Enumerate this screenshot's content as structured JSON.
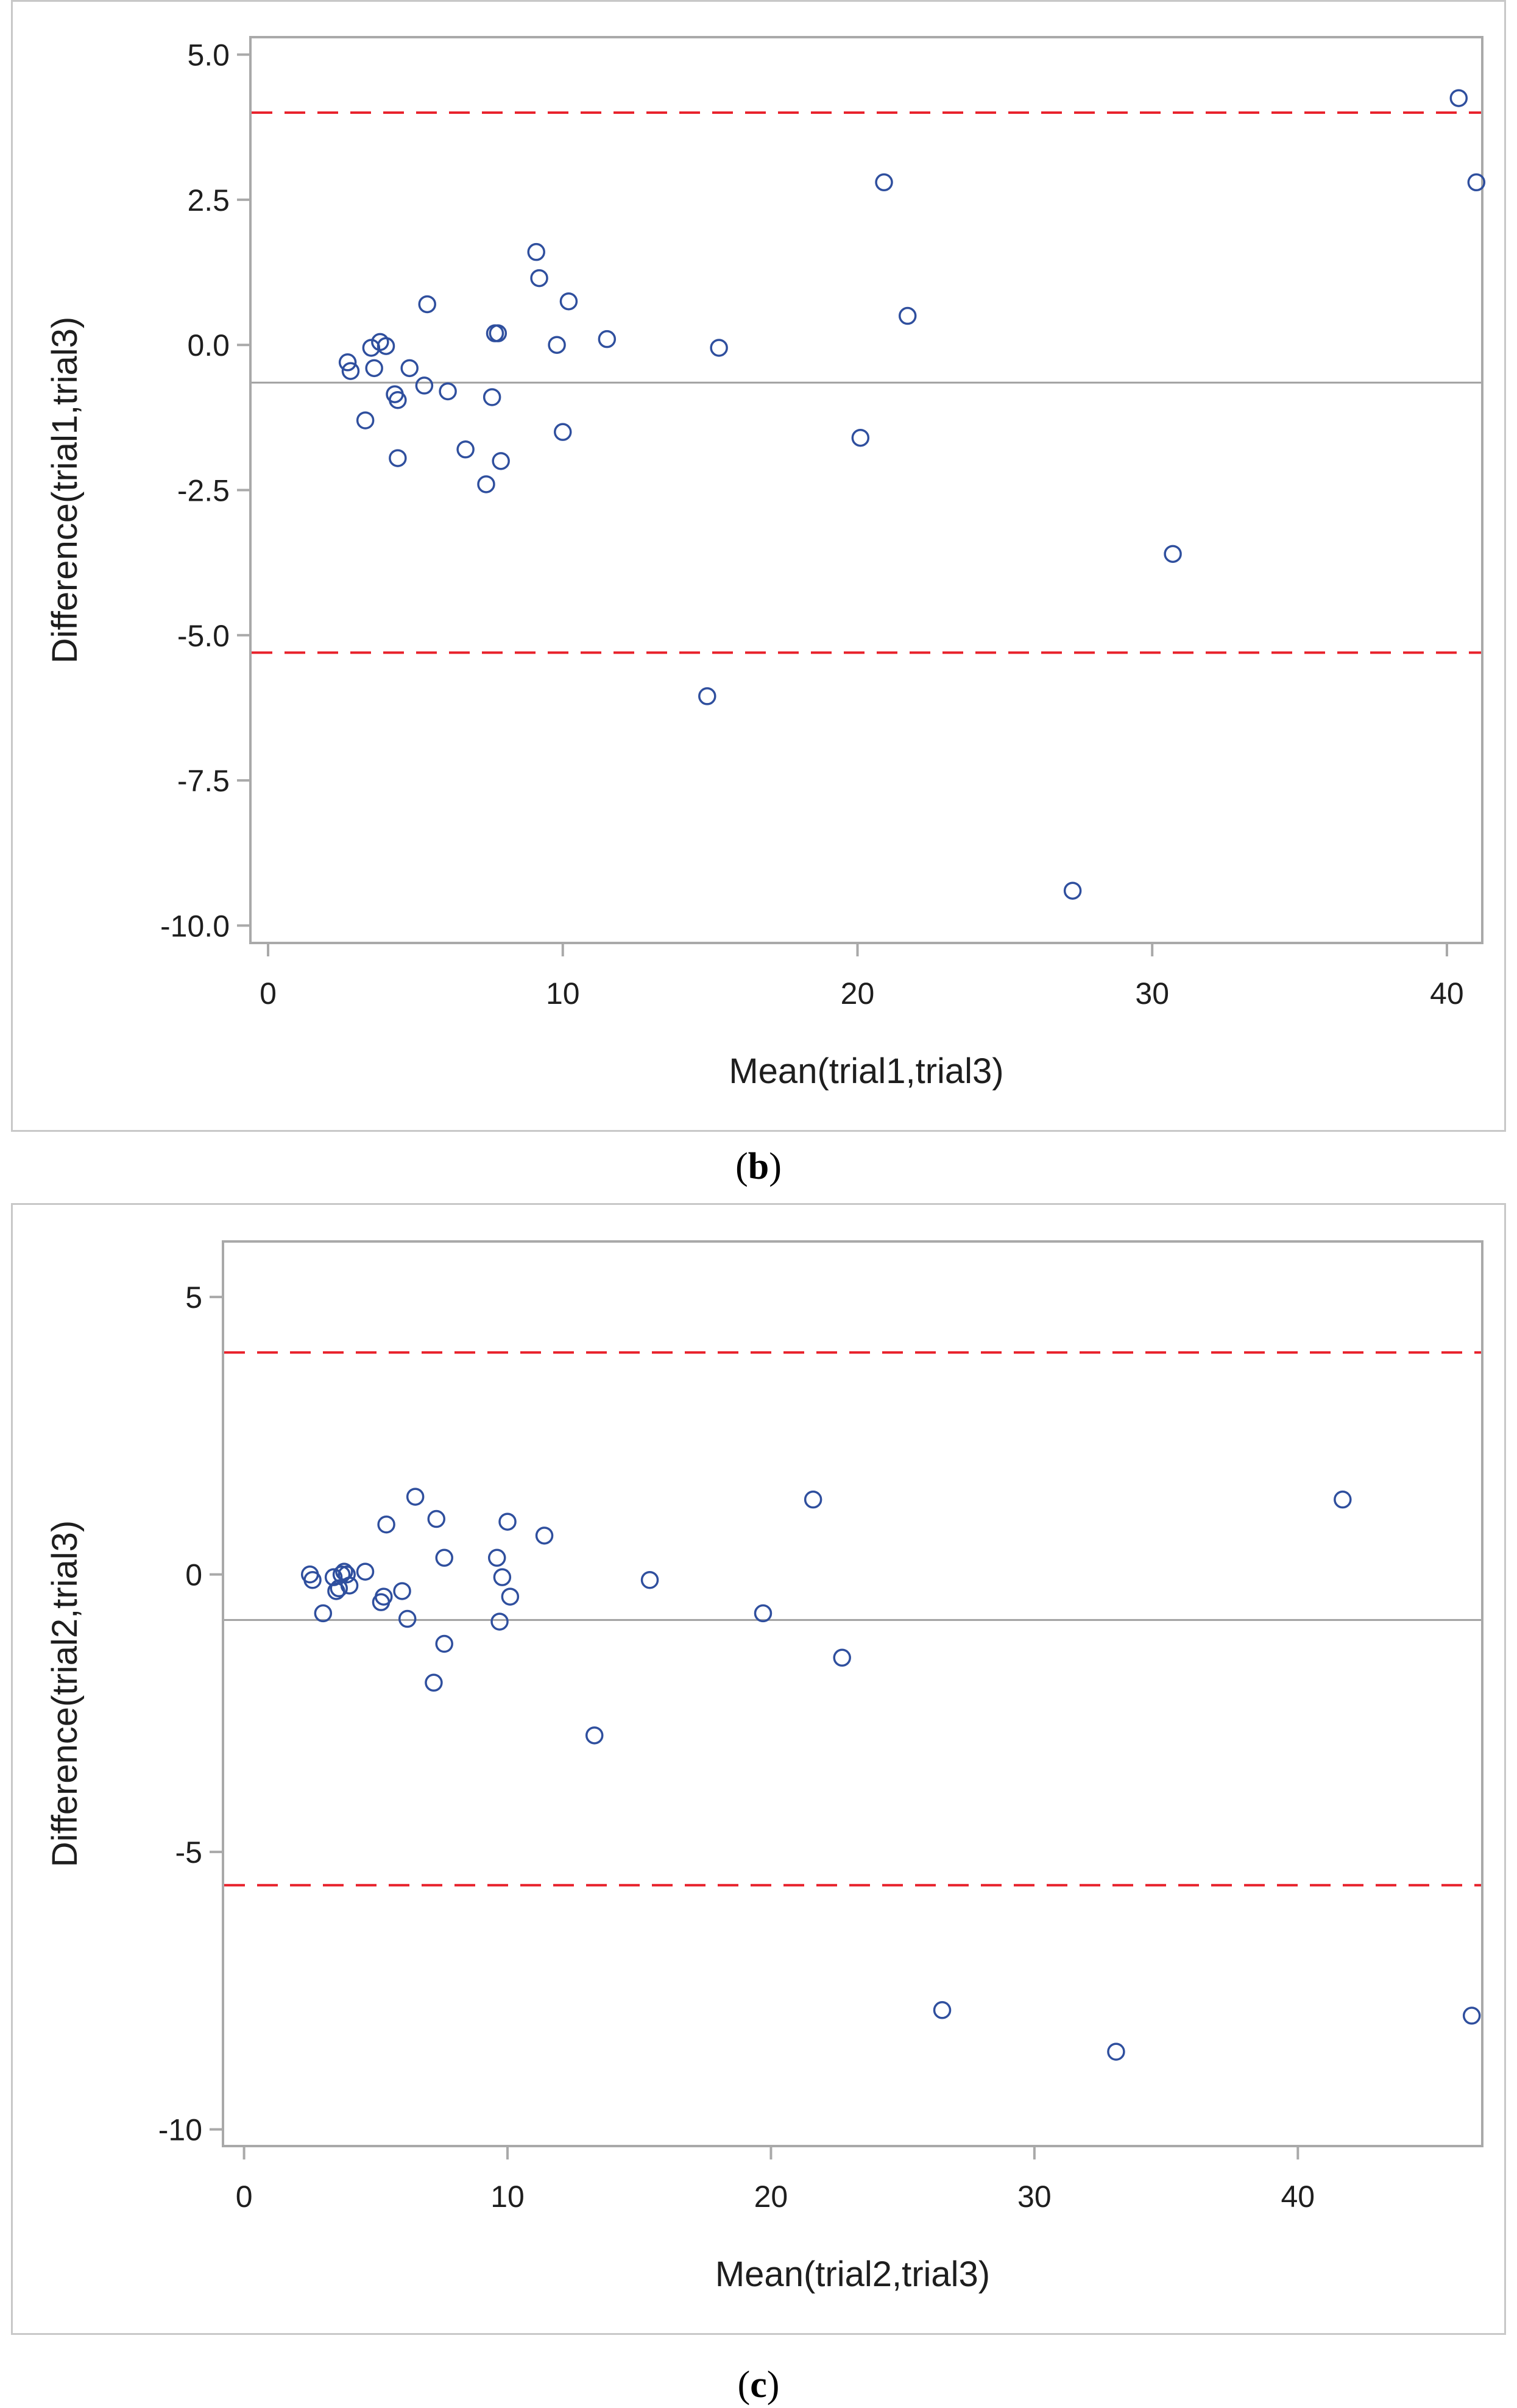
{
  "captions": {
    "b": {
      "open": "(",
      "letter": "b",
      "close": ")"
    },
    "c": {
      "open": "(",
      "letter": "c",
      "close": ")"
    }
  },
  "chart_data": [
    {
      "id": "b",
      "type": "scatter",
      "title": "",
      "xlabel": "Mean(trial1,trial3)",
      "ylabel": "Difference(trial1,trial3)",
      "xlim": [
        -0.6,
        41.2
      ],
      "ylim": [
        -10.3,
        5.3
      ],
      "xticks": [
        0,
        10,
        20,
        30,
        40
      ],
      "xtick_labels": [
        "0",
        "10",
        "20",
        "30",
        "40"
      ],
      "yticks": [
        5.0,
        2.5,
        0.0,
        -2.5,
        -5.0,
        -7.5,
        -10.0
      ],
      "ytick_labels": [
        "5.0",
        "2.5",
        "0.0",
        "-2.5",
        "-5.0",
        "-7.5",
        "-10.0"
      ],
      "grid": false,
      "reference_lines": [
        {
          "name": "upper limit of agreement",
          "y": 4.0,
          "style": "dashed",
          "color": "#e8202a"
        },
        {
          "name": "mean difference",
          "y": -0.65,
          "style": "solid",
          "color": "#a0a0a0"
        },
        {
          "name": "lower limit of agreement",
          "y": -5.3,
          "style": "dashed",
          "color": "#e8202a"
        }
      ],
      "marker_color": "#2f4f9e",
      "x": [
        2.7,
        2.8,
        3.3,
        3.5,
        3.6,
        3.8,
        4.0,
        4.3,
        4.4,
        4.4,
        4.8,
        5.3,
        5.4,
        6.1,
        6.7,
        7.4,
        7.6,
        7.7,
        7.8,
        7.9,
        9.1,
        9.2,
        9.8,
        10.0,
        10.2,
        11.5,
        14.9,
        15.3,
        20.1,
        20.9,
        21.7,
        27.3,
        30.7,
        40.4,
        41.0
      ],
      "y": [
        -0.3,
        -0.45,
        -1.3,
        -0.05,
        -0.4,
        0.05,
        -0.02,
        -0.85,
        -0.95,
        -1.95,
        -0.4,
        -0.7,
        0.7,
        -0.8,
        -1.8,
        -2.4,
        -0.9,
        0.2,
        0.2,
        -2.0,
        1.6,
        1.15,
        0.0,
        -1.5,
        0.75,
        0.1,
        -6.05,
        -0.05,
        -1.6,
        2.8,
        0.5,
        -9.4,
        -3.6,
        4.25,
        2.8
      ]
    },
    {
      "id": "c",
      "type": "scatter",
      "title": "",
      "xlabel": "Mean(trial2,trial3)",
      "ylabel": "Difference(trial2,trial3)",
      "xlim": [
        -0.8,
        47.0
      ],
      "ylim": [
        -10.3,
        6.0
      ],
      "xticks": [
        0,
        10,
        20,
        30,
        40
      ],
      "xtick_labels": [
        "0",
        "10",
        "20",
        "30",
        "40"
      ],
      "yticks": [
        5,
        0,
        -5,
        -10
      ],
      "ytick_labels": [
        "5",
        "0",
        "-5",
        "-10"
      ],
      "grid": false,
      "reference_lines": [
        {
          "name": "upper limit of agreement",
          "y": 4.0,
          "style": "dashed",
          "color": "#e8202a"
        },
        {
          "name": "mean difference",
          "y": -0.82,
          "style": "solid",
          "color": "#a0a0a0"
        },
        {
          "name": "lower limit of agreement",
          "y": -5.6,
          "style": "dashed",
          "color": "#e8202a"
        }
      ],
      "marker_color": "#2f4f9e",
      "x": [
        2.5,
        2.6,
        3.0,
        3.4,
        3.5,
        3.6,
        3.7,
        3.8,
        3.9,
        4.0,
        4.6,
        5.2,
        5.3,
        5.4,
        6.0,
        6.2,
        6.5,
        7.2,
        7.3,
        7.6,
        7.6,
        9.6,
        9.7,
        9.8,
        10.0,
        10.1,
        11.4,
        13.3,
        15.4,
        19.7,
        21.6,
        22.7,
        26.5,
        33.1,
        41.7,
        46.6
      ],
      "y": [
        0.0,
        -0.1,
        -0.7,
        -0.05,
        -0.3,
        -0.25,
        0.0,
        0.05,
        0.0,
        -0.2,
        0.05,
        -0.5,
        -0.4,
        0.9,
        -0.3,
        -0.8,
        1.4,
        -1.95,
        1.0,
        0.3,
        -1.25,
        0.3,
        -0.85,
        -0.05,
        0.95,
        -0.4,
        0.7,
        -2.9,
        -0.1,
        -0.7,
        1.35,
        -1.5,
        -7.85,
        -8.6,
        1.35,
        -7.95
      ]
    }
  ]
}
